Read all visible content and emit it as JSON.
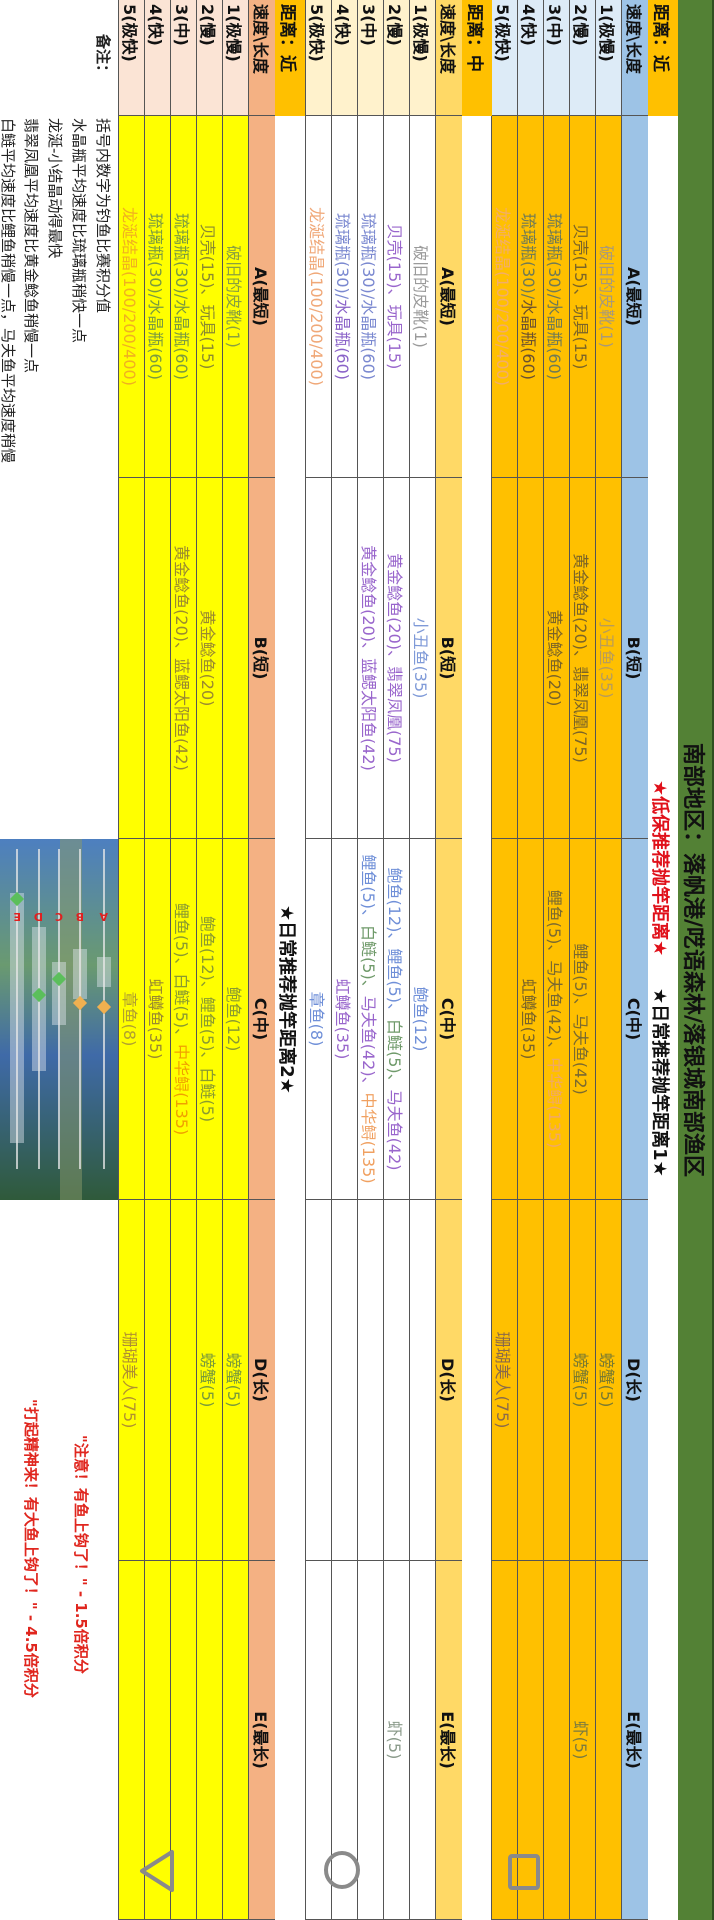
{
  "title": "南部地区：落帆港/呓语森林/落银城南部渔区",
  "banner_low": "★低保推荐抛竿距离★",
  "banner_daily1": "★日常推荐抛竿距离1★",
  "banner_daily2": "★日常推荐抛竿距离2★",
  "columns": [
    "速度\\长度",
    "A(最短)",
    "B(短)",
    "C(中)",
    "D(长)",
    "E(最长)"
  ],
  "sections": [
    {
      "distance": "距离：近",
      "colors": {
        "header": "#9DC3E6",
        "speed": "#DDEBF7",
        "cell": "#FFC000",
        "distance": "#FFC000"
      },
      "rows": [
        {
          "speed": "1(极慢)",
          "cells": [
            [
              {
                "t": "破旧的皮靴(1)",
                "c": "#a8997a"
              }
            ],
            [
              {
                "t": "小丑鱼(35)",
                "c": "#b89c5a"
              }
            ],
            [],
            [
              {
                "t": "螃蟹(5)",
                "c": "#7a7a30"
              }
            ],
            []
          ]
        },
        {
          "speed": "2(慢)",
          "cells": [
            [
              {
                "t": "贝壳(15)、玩具(15)",
                "c": "#7a6428"
              }
            ],
            [
              {
                "t": "黄金鲶鱼(20)、翡翠凤凰(75)",
                "c": "#7a6428"
              }
            ],
            [
              {
                "t": "鲤鱼(5)、马夫鱼(42)",
                "c": "#7a6a30"
              }
            ],
            [
              {
                "t": "螃蟹(5)",
                "c": "#7a7a30"
              }
            ],
            [
              {
                "t": "虾(5)",
                "c": "#7a7a40"
              }
            ]
          ]
        },
        {
          "speed": "3(中)",
          "cells": [
            [
              {
                "t": "琉璃瓶(30)/水晶瓶(60)",
                "c": "#6f7a55"
              }
            ],
            [
              {
                "t": "黄金鲶鱼(20)",
                "c": "#7a6428"
              }
            ],
            [
              {
                "t": "鲤鱼(5)、马夫鱼(42)、",
                "c": "#7a6a30"
              },
              {
                "t": "中华鲟(135)",
                "c": "#f0a868"
              }
            ],
            [],
            []
          ]
        },
        {
          "speed": "4(快)",
          "cells": [
            [
              {
                "t": "琉璃瓶(30)/",
                "c": "#6f7a55"
              },
              {
                "t": "水晶瓶(60)",
                "c": "#6a5030"
              }
            ],
            [],
            [
              {
                "t": "虹鳟鱼(35)",
                "c": "#7a6428"
              }
            ],
            [],
            []
          ]
        },
        {
          "speed": "5(极快)",
          "cells": [
            [
              {
                "t": "龙涎结晶(100/200/400)",
                "c": "#f2ad6a"
              }
            ],
            [],
            [],
            [
              {
                "t": "珊瑚美人(75)",
                "c": "#8a6a4a"
              }
            ],
            []
          ]
        }
      ]
    },
    {
      "distance": "距离：中",
      "colors": {
        "header": "#FFD966",
        "speed": "#FFF2CC",
        "cell": "#FFFFFF",
        "distance": "#FFC000"
      },
      "rows": [
        {
          "speed": "1(极慢)",
          "cells": [
            [
              {
                "t": "破旧的皮靴(1)",
                "c": "#9b9b9b"
              }
            ],
            [
              {
                "t": "小丑鱼(35)",
                "c": "#7f9ad8"
              }
            ],
            [
              {
                "t": "鲍鱼(12)",
                "c": "#6f8fd8"
              }
            ],
            [],
            []
          ]
        },
        {
          "speed": "2(慢)",
          "cells": [
            [
              {
                "t": "贝壳(15)、玩具(15)",
                "c": "#9966cc"
              }
            ],
            [
              {
                "t": "黄金鲶鱼(20)、翡翠凤凰(75)",
                "c": "#9966cc"
              }
            ],
            [
              {
                "t": "鲍鱼(12)、鲤鱼(5)、",
                "c": "#6f8fd8"
              },
              {
                "t": "白鲢(5)、",
                "c": "#6f9a6a"
              },
              {
                "t": "马夫鱼(42)",
                "c": "#9966cc"
              }
            ],
            [],
            [
              {
                "t": "虾(5)",
                "c": "#8a9a8a"
              }
            ]
          ]
        },
        {
          "speed": "3(中)",
          "cells": [
            [
              {
                "t": "琉璃瓶(30)/水晶瓶(60)",
                "c": "#7a88d0"
              }
            ],
            [
              {
                "t": "黄金鲶鱼(20)、蓝鳃太阳鱼(42)",
                "c": "#9966cc"
              }
            ],
            [
              {
                "t": "鲤鱼(5)、",
                "c": "#6f8fd8"
              },
              {
                "t": "白鲢(5)、",
                "c": "#6f9a6a"
              },
              {
                "t": "马夫鱼(42)、",
                "c": "#9966cc"
              },
              {
                "t": "中华鲟(135)",
                "c": "#f0a060"
              }
            ],
            [],
            []
          ]
        },
        {
          "speed": "4(快)",
          "cells": [
            [
              {
                "t": "琉璃瓶(30)/",
                "c": "#7a88d0"
              },
              {
                "t": "水晶瓶(60)",
                "c": "#8a62c8"
              }
            ],
            [],
            [
              {
                "t": "虹鳟鱼(35)",
                "c": "#9966cc"
              }
            ],
            [],
            []
          ]
        },
        {
          "speed": "5(极快)",
          "cells": [
            [
              {
                "t": "龙涎结晶(100/200/400)",
                "c": "#f0a878"
              }
            ],
            [],
            [
              {
                "t": "章鱼(8)",
                "c": "#6f8fd8"
              }
            ],
            [],
            []
          ]
        }
      ]
    },
    {
      "distance": "距离：近",
      "colors": {
        "header": "#F4B183",
        "speed": "#FBE4D5",
        "cell": "#FFFF00",
        "distance": "#FFC000"
      },
      "rows": [
        {
          "speed": "1(极慢)",
          "cells": [
            [
              {
                "t": "破旧的皮靴(1)",
                "c": "#8aa040"
              }
            ],
            [],
            [
              {
                "t": "鲍鱼(12)",
                "c": "#8a9a30"
              }
            ],
            [
              {
                "t": "螃蟹(5)",
                "c": "#7a9a3a"
              }
            ],
            []
          ]
        },
        {
          "speed": "2(慢)",
          "cells": [
            [
              {
                "t": "贝壳(15)、玩具(15)",
                "c": "#8a8a30"
              }
            ],
            [
              {
                "t": "黄金鲶鱼(20)",
                "c": "#9a8a30"
              }
            ],
            [
              {
                "t": "鲍鱼(12)、鲤鱼(5)、白鲢(5)",
                "c": "#8a9a30"
              }
            ],
            [
              {
                "t": "螃蟹(5)",
                "c": "#7a9a3a"
              }
            ],
            []
          ]
        },
        {
          "speed": "3(中)",
          "cells": [
            [
              {
                "t": "琉璃瓶(30)/水晶瓶(60)",
                "c": "#7a9a40"
              }
            ],
            [
              {
                "t": "黄金鲶鱼(20)、蓝鳃太阳鱼(42)",
                "c": "#9a8a30"
              }
            ],
            [
              {
                "t": "鲤鱼(5)、白鲢(5)、",
                "c": "#8a9a30"
              },
              {
                "t": "中华鲟(135)",
                "c": "#f0a000"
              }
            ],
            [],
            []
          ]
        },
        {
          "speed": "4(快)",
          "cells": [
            [
              {
                "t": "琉璃瓶(30)/水晶瓶(60)",
                "c": "#7a9a40"
              }
            ],
            [],
            [
              {
                "t": "虹鳟鱼(35)",
                "c": "#9a8a30"
              }
            ],
            [],
            []
          ]
        },
        {
          "speed": "5(极快)",
          "cells": [
            [
              {
                "t": "龙涎结晶(100/200/400)",
                "c": "#f0b020"
              }
            ],
            [],
            [
              {
                "t": "章鱼(8)",
                "c": "#b0a030"
              }
            ],
            [
              {
                "t": "珊瑚美人(75)",
                "c": "#b09030"
              }
            ],
            []
          ]
        }
      ]
    }
  ],
  "notes": {
    "label": "备注：",
    "lines": [
      "括号内数字为钓鱼比赛积分值",
      "水晶瓶平均速度比琉璃瓶稍快一点",
      "龙涎-小结晶动得最快",
      "翡翠凤凰平均速度比黄金鲶鱼稍慢一点",
      "白鲢平均速度比鲤鱼稍慢一点，马夫鱼平均速度稍慢"
    ],
    "bonus": [
      "\"注意！有鱼上钩了！\" - 1.5倍积分",
      "\"打起精神来！有大鱼上钩了！\" - 4.5倍积分"
    ]
  },
  "game_image": {
    "markers": [
      "A",
      "B",
      "C",
      "D",
      "E"
    ]
  },
  "nav": {
    "icons": [
      "back-icon",
      "home-icon",
      "recents-icon"
    ],
    "color": "#8a8a8a"
  }
}
